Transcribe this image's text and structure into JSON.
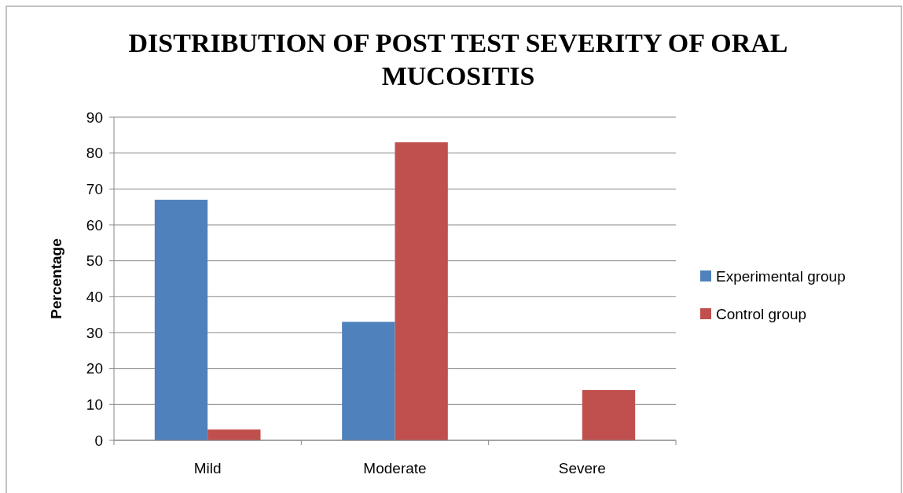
{
  "chart_data": {
    "type": "bar",
    "title": "DISTRIBUTION OF POST TEST SEVERITY OF ORAL MUCOSITIS",
    "ylabel": "Percentage",
    "categories": [
      "Mild",
      "Moderate",
      "Severe"
    ],
    "series": [
      {
        "name": "Experimental group",
        "color": "#4f81bd",
        "values": [
          67,
          33,
          0
        ]
      },
      {
        "name": "Control group",
        "color": "#c0504d",
        "values": [
          3,
          83,
          14
        ]
      }
    ],
    "ylim": [
      0,
      90
    ],
    "yticks": [
      0,
      10,
      20,
      30,
      40,
      50,
      60,
      70,
      80,
      90
    ],
    "grid": "y",
    "legend": "right"
  }
}
